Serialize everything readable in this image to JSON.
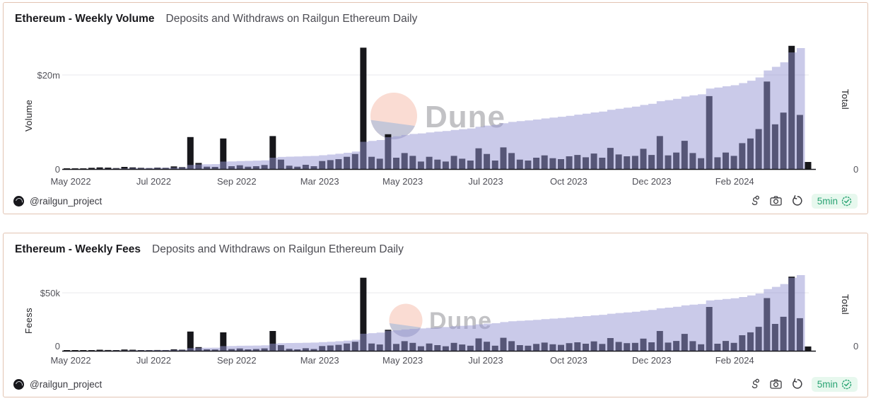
{
  "watermark": {
    "text": "Dune"
  },
  "colors": {
    "panel_border": "#e2c4b3",
    "bar": "#17171b",
    "area": "rgba(150,150,211,0.5)",
    "gridline": "#e9e9ec",
    "axis_line": "#17171b",
    "badge_bg": "#e7f8ee",
    "badge_text": "#2aa474",
    "watermark_peach": "#fadcd3",
    "watermark_slate": "#c5c7d8",
    "watermark_text": "#909096"
  },
  "panels": [
    {
      "footer": {
        "handle": "@railgun_project",
        "refresh_badge": "5min"
      },
      "icons": [
        "fork-icon",
        "camera-icon",
        "refresh-icon",
        "check-seal-icon"
      ]
    },
    {
      "footer": {
        "handle": "@railgun_project",
        "refresh_badge": "5min"
      },
      "icons": [
        "fork-icon",
        "camera-icon",
        "refresh-icon",
        "check-seal-icon"
      ]
    }
  ],
  "chart_data": [
    {
      "type": "bar",
      "title": "Ethereum - Weekly Volume",
      "subtitle": "Deposits and Withdraws on Railgun Ethereum Daily",
      "ylabel": "Volume",
      "ylabel_right": "Total",
      "y_ticks_left": [
        "$20m",
        "0"
      ],
      "y_ticks_right": [
        "0"
      ],
      "y_top_tick_value": 20,
      "unit": "USD millions per week",
      "grid": "single horizontal gridline at $20m",
      "legend": "none",
      "x_tick_labels": [
        "May 2022",
        "Jul 2022",
        "Sep 2022",
        "Mar 2023",
        "May 2023",
        "Jul 2023",
        "Oct 2023",
        "Dec 2023",
        "Feb 2024"
      ],
      "series": [
        {
          "name": "weekly_volume",
          "type": "bar",
          "values": [
            0.05,
            0.1,
            0.15,
            0.25,
            0.35,
            0.3,
            0.2,
            0.45,
            0.35,
            0.25,
            0.2,
            0.3,
            0.25,
            0.55,
            0.4,
            6.8,
            1.3,
            0.5,
            0.45,
            6.5,
            0.6,
            0.8,
            0.5,
            0.6,
            0.85,
            7.0,
            2.0,
            0.7,
            0.5,
            0.9,
            0.6,
            1.7,
            1.9,
            2.1,
            2.6,
            3.2,
            25.8,
            2.6,
            2.2,
            7.4,
            2.4,
            3.4,
            2.8,
            1.6,
            2.6,
            2.0,
            1.6,
            2.8,
            2.2,
            1.8,
            4.4,
            3.2,
            1.8,
            4.6,
            3.4,
            2.0,
            1.8,
            2.4,
            2.9,
            2.3,
            2.1,
            2.7,
            3.0,
            2.5,
            3.3,
            2.4,
            4.5,
            3.1,
            2.7,
            2.8,
            4.3,
            3.0,
            7.0,
            2.9,
            3.5,
            6.0,
            3.4,
            2.3,
            15.5,
            2.5,
            3.5,
            2.8,
            5.5,
            6.5,
            8.5,
            18.6,
            9.5,
            12.0,
            26.2,
            11.5,
            1.5
          ]
        },
        {
          "name": "total_cumulative",
          "type": "area",
          "note": "cumulative sum of weekly values, plotted on its own unlabeled right-hand scale (tick 0 only)"
        }
      ]
    },
    {
      "type": "bar",
      "title": "Ethereum - Weekly Fees",
      "subtitle": "Deposits and Withdraws on Railgun Ethereum Daily",
      "ylabel": "Feess",
      "ylabel_right": "Total",
      "y_ticks_left": [
        "$50k",
        "0"
      ],
      "y_ticks_right": [
        "0"
      ],
      "y_top_tick_value": 50,
      "unit": "USD thousands per week",
      "grid": "single horizontal gridline at $50k",
      "legend": "none",
      "x_tick_labels": [
        "May 2022",
        "Jul 2022",
        "Sep 2022",
        "Mar 2023",
        "May 2023",
        "Jul 2023",
        "Oct 2023",
        "Dec 2023",
        "Feb 2024"
      ],
      "series": [
        {
          "name": "weekly_fees",
          "type": "bar",
          "values": [
            0.1,
            0.2,
            0.4,
            0.6,
            0.9,
            0.7,
            0.5,
            1.1,
            0.9,
            0.6,
            0.5,
            0.7,
            0.6,
            1.3,
            1.0,
            16.6,
            3.2,
            1.2,
            1.1,
            15.9,
            1.5,
            2.0,
            1.2,
            1.5,
            2.1,
            17.1,
            4.9,
            1.7,
            1.2,
            2.2,
            1.5,
            4.1,
            4.6,
            5.1,
            6.3,
            7.8,
            63.0,
            6.3,
            5.4,
            18.1,
            5.9,
            8.3,
            6.8,
            3.9,
            6.3,
            4.9,
            3.9,
            6.8,
            5.4,
            4.4,
            10.7,
            7.8,
            4.4,
            11.2,
            8.3,
            4.9,
            4.4,
            5.9,
            7.1,
            5.6,
            5.1,
            6.6,
            7.3,
            6.1,
            8.1,
            5.9,
            11.0,
            7.6,
            6.6,
            6.8,
            10.5,
            7.3,
            17.1,
            7.1,
            8.5,
            14.6,
            8.3,
            5.6,
            37.8,
            6.1,
            8.5,
            6.8,
            13.4,
            15.9,
            20.7,
            45.4,
            23.2,
            29.3,
            63.9,
            28.1,
            3.7
          ]
        },
        {
          "name": "total_cumulative",
          "type": "area",
          "note": "cumulative sum of weekly values, plotted on its own unlabeled right-hand scale (tick 0 only)"
        }
      ]
    }
  ]
}
